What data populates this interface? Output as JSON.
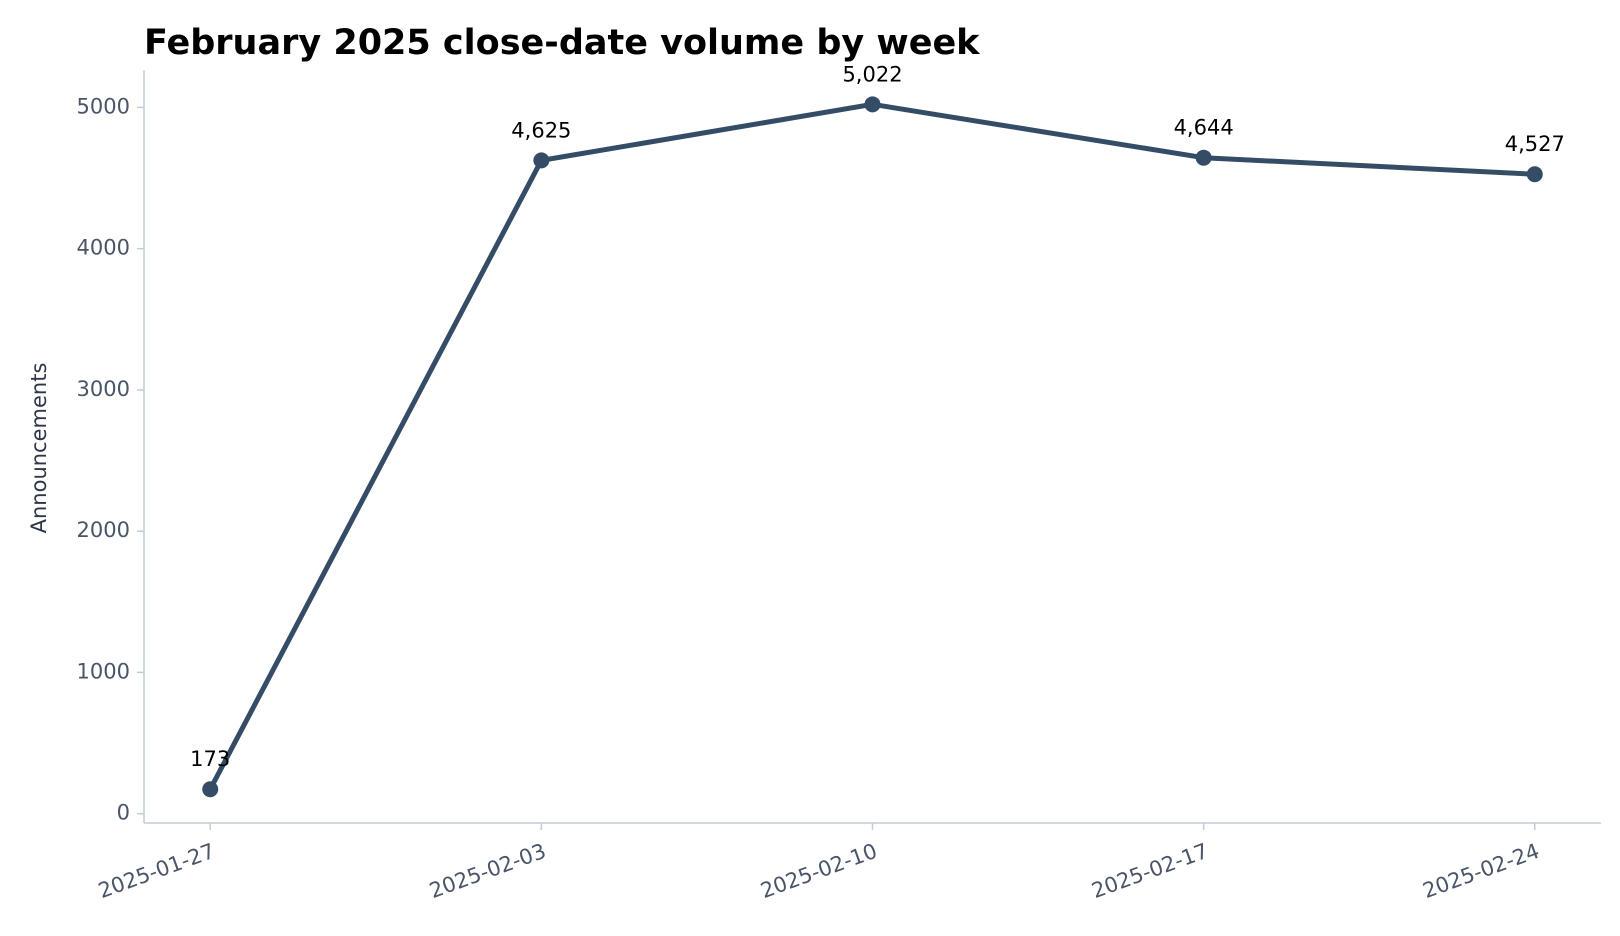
{
  "chart_data": {
    "type": "line",
    "title": "February 2025 close-date volume by week",
    "y_label": "Announcements",
    "x": [
      "2025-01-27",
      "2025-02-03",
      "2025-02-10",
      "2025-02-17",
      "2025-02-24"
    ],
    "values": [
      173,
      4625,
      5022,
      4644,
      4527
    ],
    "value_labels": [
      "173",
      "4,625",
      "5,022",
      "4,644",
      "4,527"
    ],
    "color": "#344c66",
    "ylim": [
      -66,
      5265
    ],
    "yticks": [
      0,
      1000,
      2000,
      3000,
      4000,
      5000
    ],
    "grid": false
  }
}
